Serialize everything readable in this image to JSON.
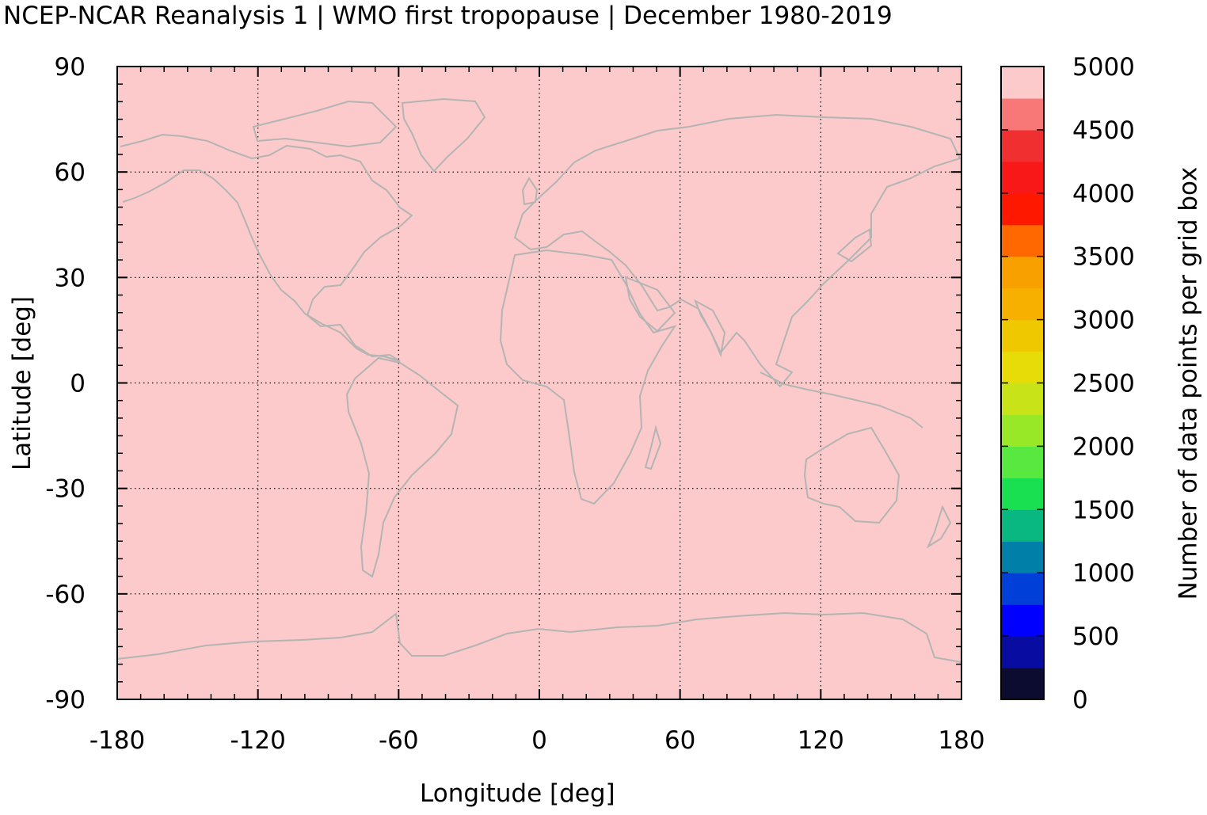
{
  "title": "NCEP-NCAR Reanalysis 1 | WMO first tropopause | December 1980-2019",
  "map": {
    "xlabel": "Longitude [deg]",
    "ylabel": "Latitude [deg]",
    "xlim": [
      -180,
      180
    ],
    "ylim": [
      -90,
      90
    ],
    "xticks": [
      "-180",
      "-120",
      "-60",
      "0",
      "60",
      "120",
      "180"
    ],
    "yticks": [
      "90",
      "60",
      "30",
      "0",
      "-30",
      "-60",
      "-90"
    ],
    "grid": true,
    "background_color": "#fccaca",
    "coastline_color": "#b4b4b4"
  },
  "colorbar": {
    "label": "Number of data points per grid box",
    "range": [
      0,
      5000
    ],
    "ticks": [
      "5000",
      "4500",
      "4000",
      "3500",
      "3000",
      "2500",
      "2000",
      "1500",
      "1000",
      "500",
      "0"
    ],
    "colors": [
      "#0c0c30",
      "#080ca0",
      "#0000ff",
      "#0040d8",
      "#0080a8",
      "#08b880",
      "#18e050",
      "#58e840",
      "#98e828",
      "#c8e418",
      "#e8dc08",
      "#f0c800",
      "#f8b000",
      "#f8a000",
      "#ff6800",
      "#ff1800",
      "#f81818",
      "#f03030",
      "#f87878",
      "#fccaca"
    ]
  },
  "chart_data": {
    "type": "heatmap",
    "title": "NCEP-NCAR Reanalysis 1 | WMO first tropopause | December 1980-2019",
    "xlabel": "Longitude [deg]",
    "ylabel": "Latitude [deg]",
    "xlim": [
      -180,
      180
    ],
    "ylim": [
      -90,
      90
    ],
    "value_uniform": 5000,
    "colorbar_label": "Number of data points per grid box",
    "colorbar_range": [
      0,
      5000
    ]
  }
}
